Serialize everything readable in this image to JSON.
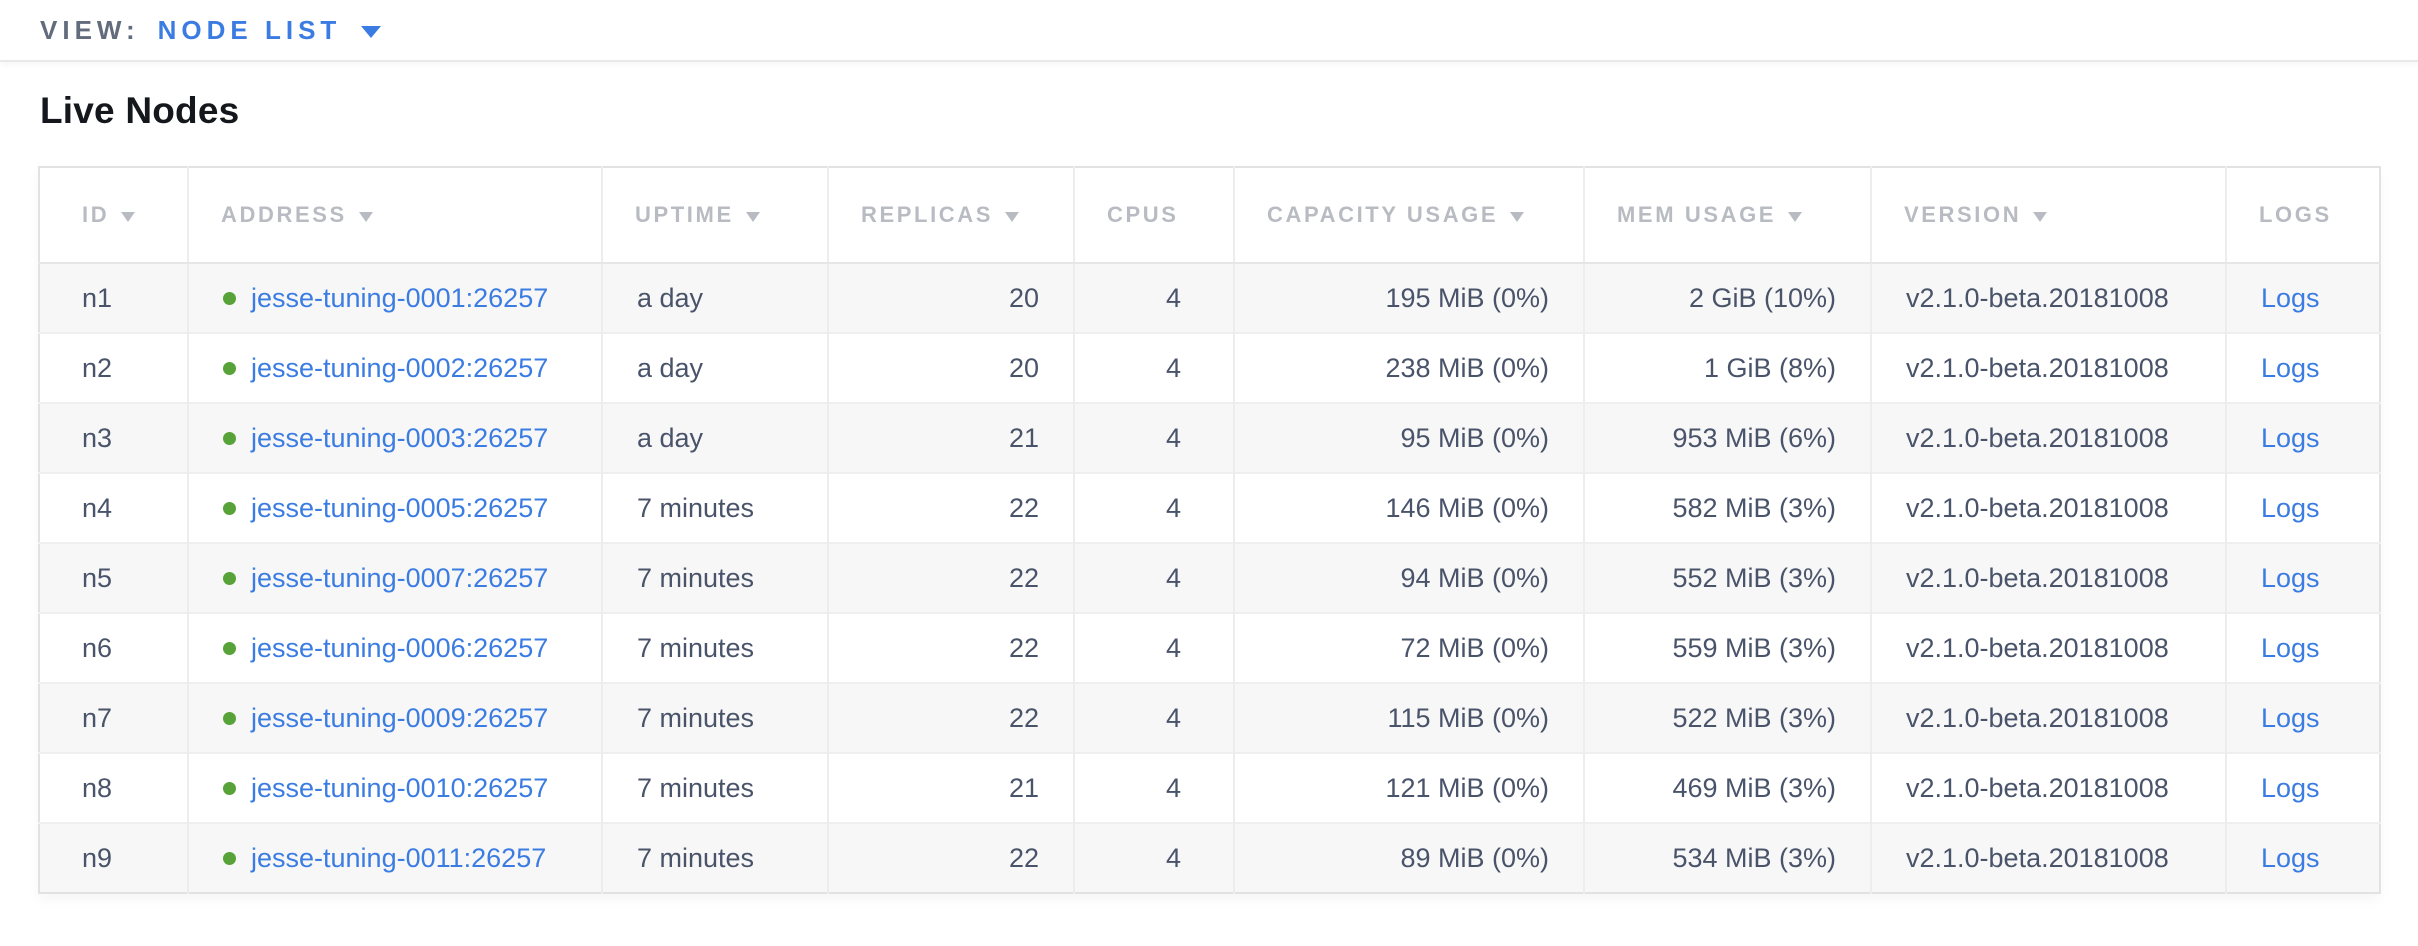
{
  "view_bar": {
    "label": "VIEW:",
    "selected": "NODE LIST"
  },
  "page": {
    "title": "Live Nodes"
  },
  "table": {
    "columns": [
      {
        "key": "id",
        "label": "ID",
        "sortable": true
      },
      {
        "key": "address",
        "label": "ADDRESS",
        "sortable": true
      },
      {
        "key": "uptime",
        "label": "UPTIME",
        "sortable": true
      },
      {
        "key": "replicas",
        "label": "REPLICAS",
        "sortable": true
      },
      {
        "key": "cpus",
        "label": "CPUS",
        "sortable": false
      },
      {
        "key": "capacity",
        "label": "CAPACITY USAGE",
        "sortable": true
      },
      {
        "key": "mem",
        "label": "MEM USAGE",
        "sortable": true
      },
      {
        "key": "version",
        "label": "VERSION",
        "sortable": true
      },
      {
        "key": "logs",
        "label": "LOGS",
        "sortable": false
      }
    ],
    "rows": [
      {
        "id": "n1",
        "address": "jesse-tuning-0001:26257",
        "uptime": "a day",
        "replicas": "20",
        "cpus": "4",
        "capacity": "195 MiB (0%)",
        "mem": "2 GiB (10%)",
        "version": "v2.1.0-beta.20181008",
        "logs": "Logs",
        "status": "healthy"
      },
      {
        "id": "n2",
        "address": "jesse-tuning-0002:26257",
        "uptime": "a day",
        "replicas": "20",
        "cpus": "4",
        "capacity": "238 MiB (0%)",
        "mem": "1 GiB (8%)",
        "version": "v2.1.0-beta.20181008",
        "logs": "Logs",
        "status": "healthy"
      },
      {
        "id": "n3",
        "address": "jesse-tuning-0003:26257",
        "uptime": "a day",
        "replicas": "21",
        "cpus": "4",
        "capacity": "95 MiB (0%)",
        "mem": "953 MiB (6%)",
        "version": "v2.1.0-beta.20181008",
        "logs": "Logs",
        "status": "healthy"
      },
      {
        "id": "n4",
        "address": "jesse-tuning-0005:26257",
        "uptime": "7 minutes",
        "replicas": "22",
        "cpus": "4",
        "capacity": "146 MiB (0%)",
        "mem": "582 MiB (3%)",
        "version": "v2.1.0-beta.20181008",
        "logs": "Logs",
        "status": "healthy"
      },
      {
        "id": "n5",
        "address": "jesse-tuning-0007:26257",
        "uptime": "7 minutes",
        "replicas": "22",
        "cpus": "4",
        "capacity": "94 MiB (0%)",
        "mem": "552 MiB (3%)",
        "version": "v2.1.0-beta.20181008",
        "logs": "Logs",
        "status": "healthy"
      },
      {
        "id": "n6",
        "address": "jesse-tuning-0006:26257",
        "uptime": "7 minutes",
        "replicas": "22",
        "cpus": "4",
        "capacity": "72 MiB (0%)",
        "mem": "559 MiB (3%)",
        "version": "v2.1.0-beta.20181008",
        "logs": "Logs",
        "status": "healthy"
      },
      {
        "id": "n7",
        "address": "jesse-tuning-0009:26257",
        "uptime": "7 minutes",
        "replicas": "22",
        "cpus": "4",
        "capacity": "115 MiB (0%)",
        "mem": "522 MiB (3%)",
        "version": "v2.1.0-beta.20181008",
        "logs": "Logs",
        "status": "healthy"
      },
      {
        "id": "n8",
        "address": "jesse-tuning-0010:26257",
        "uptime": "7 minutes",
        "replicas": "21",
        "cpus": "4",
        "capacity": "121 MiB (0%)",
        "mem": "469 MiB (3%)",
        "version": "v2.1.0-beta.20181008",
        "logs": "Logs",
        "status": "healthy"
      },
      {
        "id": "n9",
        "address": "jesse-tuning-0011:26257",
        "uptime": "7 minutes",
        "replicas": "22",
        "cpus": "4",
        "capacity": "89 MiB (0%)",
        "mem": "534 MiB (3%)",
        "version": "v2.1.0-beta.20181008",
        "logs": "Logs",
        "status": "healthy"
      }
    ]
  },
  "colors": {
    "accent": "#3b7ce2",
    "green": "#57a339",
    "header-text": "#b8bcc2",
    "body-text": "#49536a"
  }
}
